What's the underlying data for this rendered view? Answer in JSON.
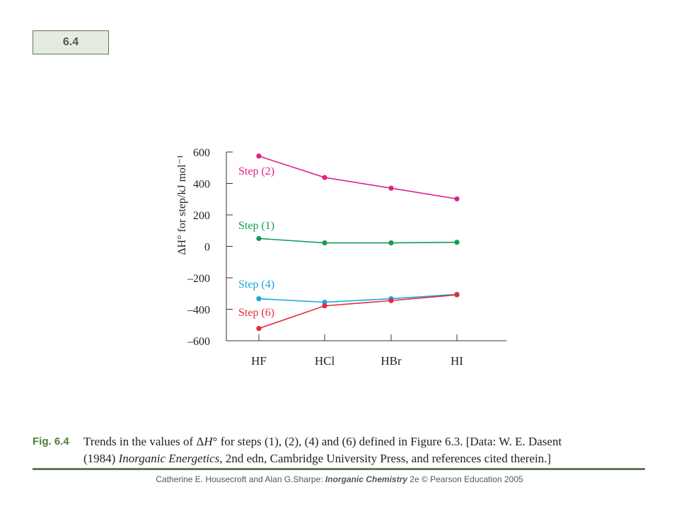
{
  "badge": {
    "label": "6.4"
  },
  "chart_data": {
    "type": "line",
    "categories": [
      "HF",
      "HCl",
      "HBr",
      "HI"
    ],
    "ylabel": "ΔH° for step/kJ mol⁻¹",
    "ylim": [
      -600,
      600
    ],
    "yticks": [
      "600",
      "400",
      "200",
      "0",
      "–200",
      "–400",
      "–600"
    ],
    "ytick_values": [
      600,
      400,
      200,
      0,
      -200,
      -400,
      -600
    ],
    "series": [
      {
        "name": "Step (2)",
        "color": "#e0218a",
        "values": [
          574,
          438,
          370,
          302
        ]
      },
      {
        "name": "Step (1)",
        "color": "#119c57",
        "values": [
          50,
          22,
          22,
          26
        ]
      },
      {
        "name": "Step (4)",
        "color": "#19a6de",
        "values": [
          -333,
          -355,
          -333,
          -305
        ]
      },
      {
        "name": "Step (6)",
        "color": "#e32b3b",
        "values": [
          -522,
          -378,
          -345,
          -308
        ]
      }
    ]
  },
  "caption": {
    "label": "Fig. 6.4",
    "line1_a": "Trends in the values of Δ",
    "line1_H": "H",
    "line1_b": "° for steps (1), (2), (4) and (6) defined in Figure 6.3. [Data: W. E. Dasent",
    "line2_a": "(1984) ",
    "line2_title": "Inorganic Energetics",
    "line2_b": ", 2nd edn, Cambridge University Press, and references cited therein.]"
  },
  "footer": {
    "authors": "Catherine E. Housecroft and Alan G.Sharpe: ",
    "book": "Inorganic Chemistry",
    "rest": " 2e © Pearson Education 2005"
  }
}
